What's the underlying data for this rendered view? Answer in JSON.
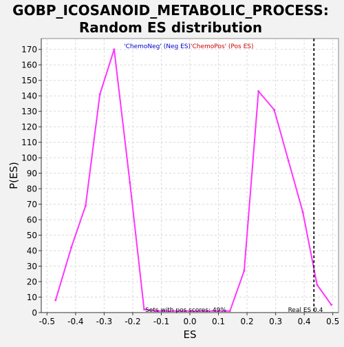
{
  "chart_data": {
    "type": "line",
    "title_line1": "GOBP_ICOSANOID_METABOLIC_PROCESS:",
    "title_line2": "Random ES distribution",
    "xlabel": "ES",
    "ylabel": "P(ES)",
    "xlim": [
      -0.52,
      0.52
    ],
    "ylim": [
      0,
      177
    ],
    "x_ticks": [
      -0.5,
      -0.4,
      -0.3,
      -0.2,
      -0.1,
      0.0,
      0.1,
      0.2,
      0.3,
      0.4,
      0.5
    ],
    "x_tick_labels": [
      "-0.5",
      "-0.4",
      "-0.3",
      "-0.2",
      "-0.1",
      "0.0",
      "0.1",
      "0.2",
      "0.3",
      "0.4",
      "0.5"
    ],
    "y_ticks": [
      0,
      10,
      20,
      30,
      40,
      50,
      60,
      70,
      80,
      90,
      100,
      110,
      120,
      130,
      140,
      150,
      160,
      170
    ],
    "grid": true,
    "series": [
      {
        "color": "#ff33ff",
        "x": [
          -0.47,
          -0.415,
          -0.365,
          -0.315,
          -0.265,
          -0.21,
          -0.16,
          -0.11,
          0.14,
          0.19,
          0.24,
          0.295,
          0.345,
          0.395,
          0.445,
          0.495
        ],
        "y": [
          8,
          42,
          69,
          141,
          170,
          84,
          2,
          1,
          1,
          27,
          143,
          131,
          98,
          65,
          18,
          5
        ]
      }
    ],
    "real_es": 0.434,
    "legend": {
      "neg_label": "'ChemoNeg' (Neg ES)",
      "pos_label": "'ChemoPos' (Pos ES)",
      "neg_color": "#0000cc",
      "pos_color": "#cc0000"
    },
    "annotations": {
      "pos_scores": "Sets with pos scores: 49%",
      "real_es_label": "Real ES 0.4"
    }
  },
  "colors": {
    "background": "#f2f2f2",
    "plot_background": "#ffffff",
    "grid": "#d9d9d9",
    "axis": "#333333",
    "real_es_line": "#222222"
  }
}
